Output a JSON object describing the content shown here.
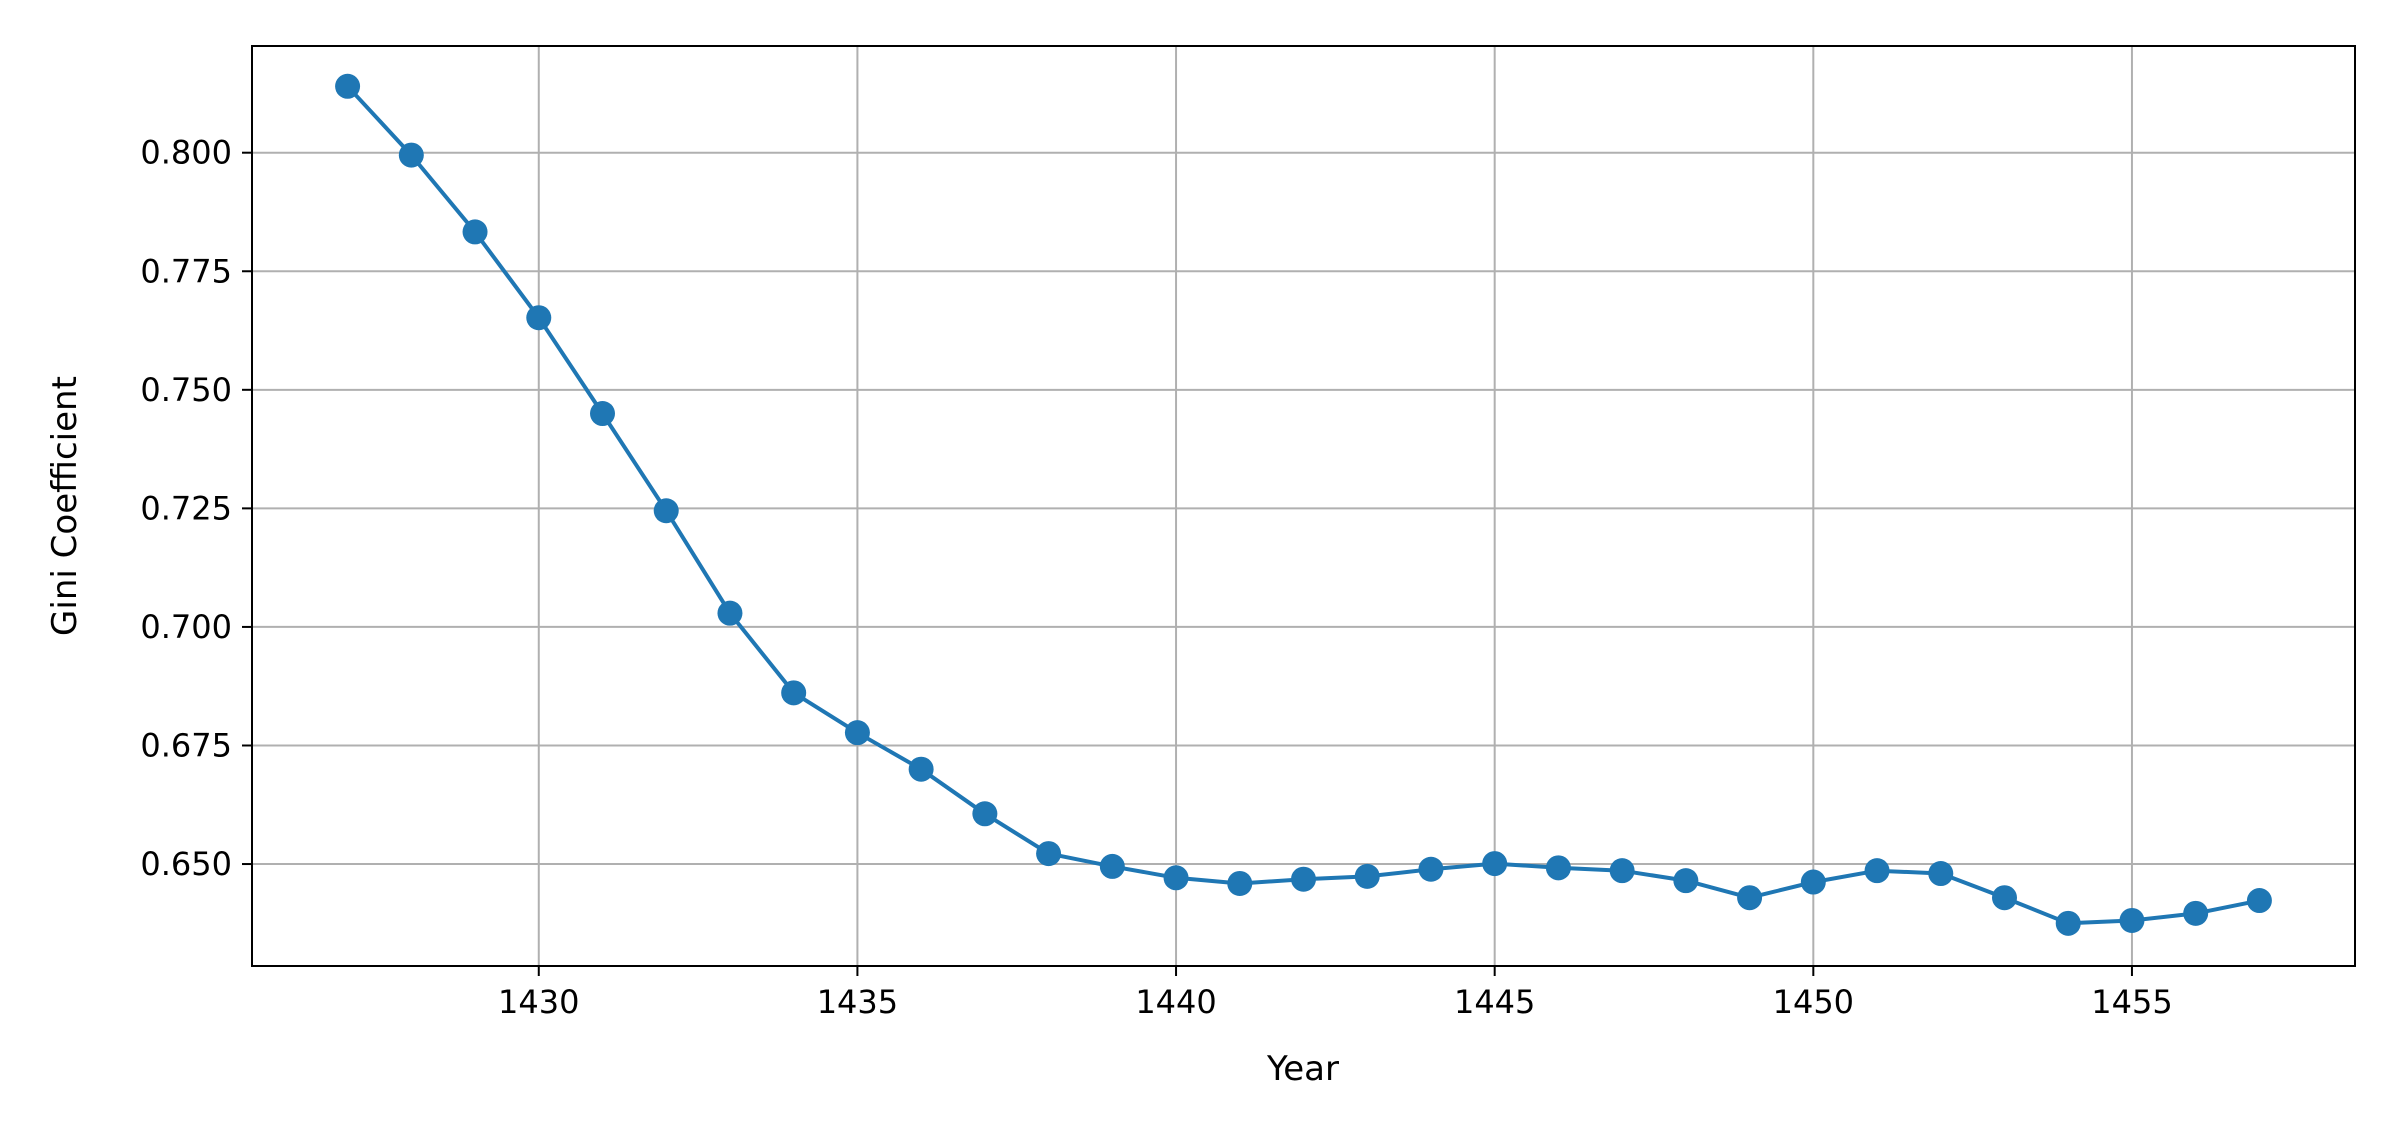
{
  "chart_data": {
    "type": "line",
    "title": "",
    "xlabel": "Year",
    "ylabel": "Gini Coefficient",
    "xlim": [
      1425.5,
      1458.5
    ],
    "ylim": [
      0.6285,
      0.8225
    ],
    "xticks": [
      1430,
      1435,
      1440,
      1445,
      1450,
      1455
    ],
    "yticks": [
      0.65,
      0.675,
      0.7,
      0.725,
      0.75,
      0.775,
      0.8
    ],
    "ytick_labels": [
      "0.650",
      "0.675",
      "0.700",
      "0.725",
      "0.750",
      "0.775",
      "0.800"
    ],
    "grid": true,
    "legend": "none",
    "series": [
      {
        "color": "#1f77b4",
        "marker": "circle",
        "x": [
          1427,
          1428,
          1429,
          1430,
          1431,
          1432,
          1433,
          1434,
          1435,
          1436,
          1437,
          1438,
          1439,
          1440,
          1441,
          1442,
          1443,
          1444,
          1445,
          1446,
          1447,
          1448,
          1449,
          1450,
          1451,
          1452,
          1453,
          1454,
          1455,
          1456,
          1457
        ],
        "y": [
          0.814,
          0.7995,
          0.7833,
          0.7652,
          0.745,
          0.7245,
          0.7029,
          0.6861,
          0.6777,
          0.67,
          0.6606,
          0.6522,
          0.6495,
          0.6471,
          0.6459,
          0.6468,
          0.6474,
          0.6489,
          0.6501,
          0.6492,
          0.6486,
          0.6465,
          0.6429,
          0.6462,
          0.6486,
          0.648,
          0.6429,
          0.6375,
          0.6381,
          0.6396,
          0.6423
        ]
      }
    ]
  },
  "colors": {
    "grid": "#b0b0b0",
    "axes": "#000000",
    "line": "#1f77b4"
  }
}
